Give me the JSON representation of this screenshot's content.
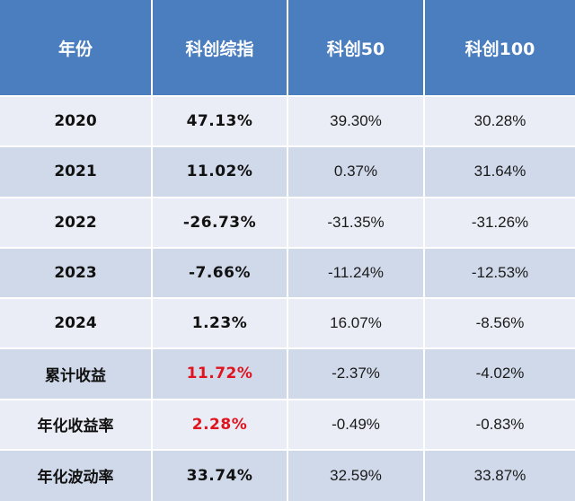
{
  "headers": [
    "年份",
    "科创综指",
    "科创50",
    "科创100"
  ],
  "rows": [
    {
      "label": "2020",
      "main": "47.13%",
      "v50": "39.30%",
      "v100": "30.28%",
      "highlight": false
    },
    {
      "label": "2021",
      "main": "11.02%",
      "v50": "0.37%",
      "v100": "31.64%",
      "highlight": false
    },
    {
      "label": "2022",
      "main": "-26.73%",
      "v50": "-31.35%",
      "v100": "-31.26%",
      "highlight": false
    },
    {
      "label": "2023",
      "main": "-7.66%",
      "v50": "-11.24%",
      "v100": "-12.53%",
      "highlight": false
    },
    {
      "label": "2024",
      "main": "1.23%",
      "v50": "16.07%",
      "v100": "-8.56%",
      "highlight": false
    },
    {
      "label": "累计收益",
      "main": "11.72%",
      "v50": "-2.37%",
      "v100": "-4.02%",
      "highlight": true
    },
    {
      "label": "年化收益率",
      "main": "2.28%",
      "v50": "-0.49%",
      "v100": "-0.83%",
      "highlight": true
    },
    {
      "label": "年化波动率",
      "main": "33.74%",
      "v50": "32.59%",
      "v100": "33.87%",
      "highlight": false
    }
  ],
  "colors": {
    "header_bg": "#4a7ebf",
    "header_text": "#ffffff",
    "row_light": "#eaedf5",
    "row_dark": "#d0d9ea",
    "highlight_text": "#e0141e"
  }
}
